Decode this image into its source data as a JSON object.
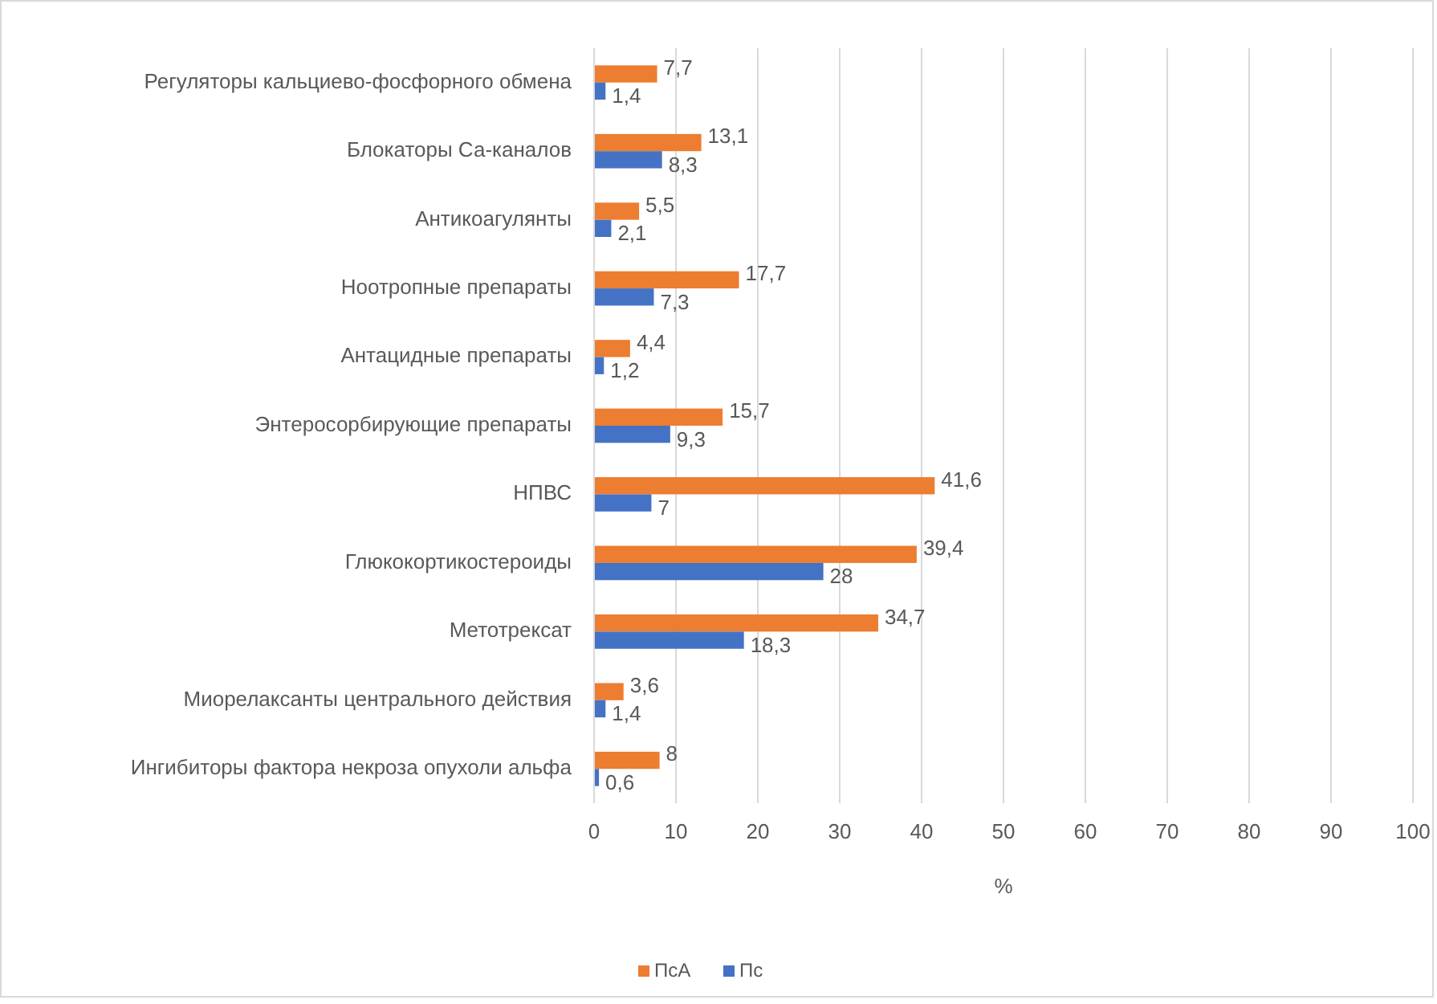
{
  "chart_data": {
    "type": "bar",
    "orientation": "horizontal",
    "xlabel": "%",
    "categories": [
      "Регуляторы кальциево-фосфорного обмена",
      "Блокаторы Са-каналов",
      "Антикоагулянты",
      "Ноотропные препараты",
      "Антацидные препараты",
      "Энтеросорбирующие препараты",
      "НПВС",
      "Глюкокортикостероиды",
      "Метотрексат",
      "Миорелаксанты центрального действия",
      "Ингибиторы фактора некроза опухоли альфа"
    ],
    "series": [
      {
        "name": "ПсА",
        "color": "#ed7d31",
        "values": [
          7.7,
          13.1,
          5.5,
          17.7,
          4.4,
          15.7,
          41.6,
          39.4,
          34.7,
          3.6,
          8
        ],
        "value_labels": [
          "7,7",
          "13,1",
          "5,5",
          "17,7",
          "4,4",
          "15,7",
          "41,6",
          "39,4",
          "34,7",
          "3,6",
          "8"
        ]
      },
      {
        "name": "Пс",
        "color": "#4472c4",
        "values": [
          1.4,
          8.3,
          2.1,
          7.3,
          1.2,
          9.3,
          7,
          28,
          18.3,
          1.4,
          0.6
        ],
        "value_labels": [
          "1,4",
          "8,3",
          "2,1",
          "7,3",
          "1,2",
          "9,3",
          "7",
          "28",
          "18,3",
          "1,4",
          "0,6"
        ]
      }
    ],
    "xlim": [
      0,
      100
    ],
    "xticks": [
      0,
      10,
      20,
      30,
      40,
      50,
      60,
      70,
      80,
      90,
      100
    ],
    "grid": "x",
    "legend": "bottom"
  }
}
